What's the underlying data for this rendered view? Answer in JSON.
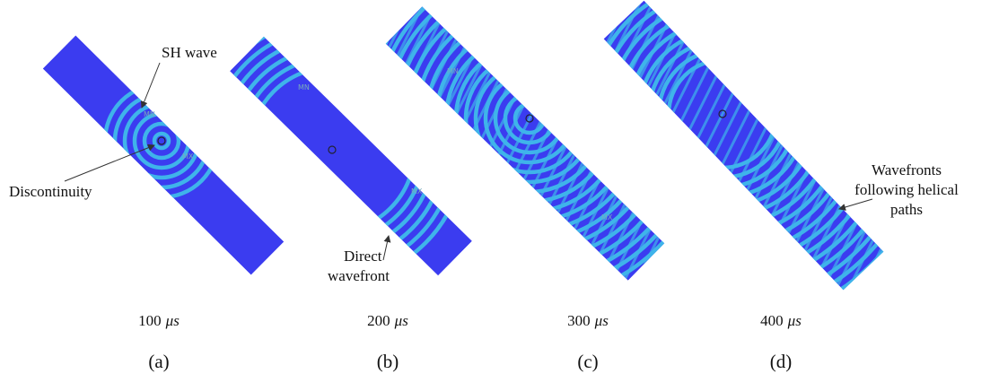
{
  "panels": [
    {
      "label": "(a)",
      "time": "100",
      "unit": "μs",
      "markers": [
        "MN",
        "MX"
      ]
    },
    {
      "label": "(b)",
      "time": "200",
      "unit": "μs",
      "markers": [
        "MN",
        "MX"
      ]
    },
    {
      "label": "(c)",
      "time": "300",
      "unit": "μs",
      "markers": [
        "MN",
        "MX"
      ]
    },
    {
      "label": "(d)",
      "time": "400",
      "unit": "μs",
      "markers": []
    }
  ],
  "annotations": {
    "sh_wave": "SH wave",
    "discontinuity": "Discontinuity",
    "direct_wavefront": [
      "Direct",
      "wavefront"
    ],
    "helical": [
      "Wavefronts",
      "following helical",
      "paths"
    ]
  }
}
